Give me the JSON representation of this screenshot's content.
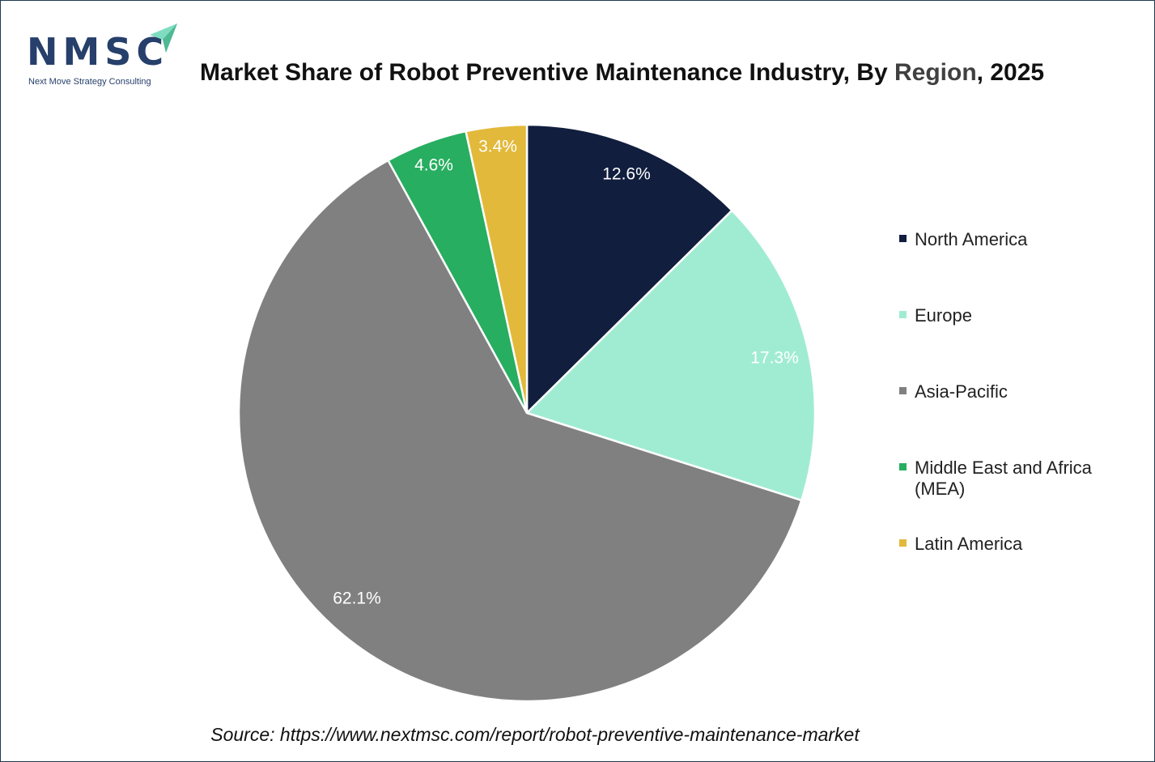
{
  "brand": {
    "name": "NMSC",
    "tagline": "Next Move Strategy Consulting",
    "colors": {
      "primary": "#263f6b",
      "accent": "#7fdcc0"
    }
  },
  "title": {
    "prefix": "Market Share of Robot Preventive Maintenance Industry, By ",
    "highlight": "Region",
    "suffix": ", 2025"
  },
  "chart_data": {
    "type": "pie",
    "title": "Market Share of Robot Preventive Maintenance Industry, By Region, 2025",
    "unit": "%",
    "categories": [
      "North America",
      "Europe",
      "Asia-Pacific",
      "Middle East and Africa (MEA)",
      "Latin America"
    ],
    "values": [
      12.6,
      17.3,
      62.1,
      4.6,
      3.4
    ],
    "labels": [
      "12.6%",
      "17.3%",
      "62.1%",
      "4.6%",
      "3.4%"
    ],
    "colors": [
      "#111e3e",
      "#a0ecd3",
      "#808080",
      "#27ae60",
      "#e2b93b"
    ],
    "start_angle_deg": 0,
    "direction": "clockwise",
    "legend": "right"
  },
  "source": "Source: https://www.nextmsc.com/report/robot-preventive-maintenance-market"
}
